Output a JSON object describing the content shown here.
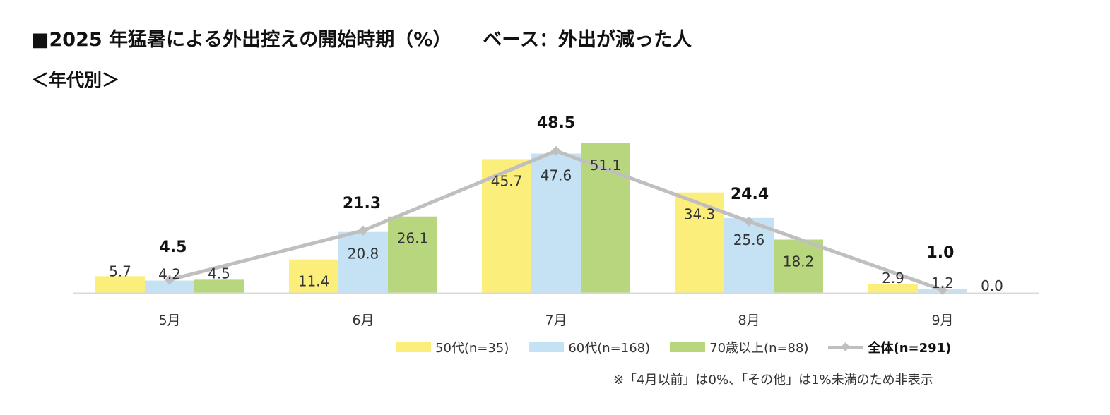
{
  "header": {
    "title": "■2025 年猛暑による外出控えの開始時期（%）",
    "base": "ベース：外出が減った人",
    "subtitle": "＜年代別＞"
  },
  "colors": {
    "s50": "#fcee7a",
    "s60": "#c5e1f4",
    "s70": "#b7d67e",
    "total": "#bfbfbf",
    "axis": "#d9d9d9"
  },
  "chart_data": {
    "type": "bar",
    "categories": [
      "5月",
      "6月",
      "7月",
      "8月",
      "9月"
    ],
    "series": [
      {
        "name": "50代(n=35)",
        "values": [
          5.7,
          11.4,
          45.7,
          34.3,
          2.9
        ]
      },
      {
        "name": "60代(n=168)",
        "values": [
          4.2,
          20.8,
          47.6,
          25.6,
          1.2
        ]
      },
      {
        "name": "70歳以上(n=88)",
        "values": [
          4.5,
          26.1,
          51.1,
          18.2,
          0.0
        ]
      }
    ],
    "line": {
      "name": "全体(n=291)",
      "values": [
        4.5,
        21.3,
        48.5,
        24.4,
        1.0
      ]
    },
    "ylim": [
      0,
      51.1
    ]
  },
  "footnote": "※「4月以前」は0%、「その他」は1%未満のため非表示"
}
